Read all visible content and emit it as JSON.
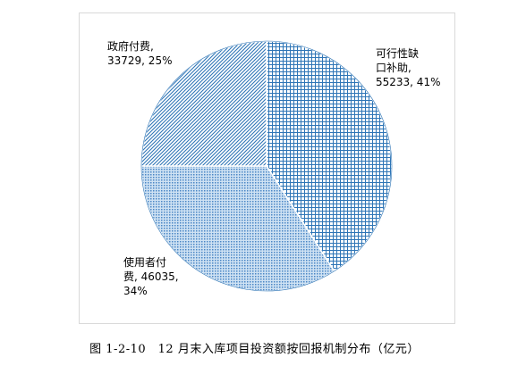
{
  "chart_data": {
    "type": "pie",
    "slices": [
      {
        "label": "可行性缺口补助",
        "value": 55233,
        "percent": "41%",
        "display": "可行性缺\n口补助,\n55233, 41%"
      },
      {
        "label": "使用者付费",
        "value": 46035,
        "percent": "34%",
        "display": "使用者付\n费, 46035,\n34%"
      },
      {
        "label": "政府付费",
        "value": 33729,
        "percent": "25%",
        "display": "政府付费,\n33729, 25%"
      }
    ],
    "colors": {
      "fill": "#bdd7ee",
      "stroke": "#2e75b6",
      "border": "#ffffff"
    },
    "patterns": [
      "grid",
      "dots",
      "diagonal"
    ]
  },
  "caption": "图 1-2-10　12 月末入库项目投资额按回报机制分布（亿元）"
}
